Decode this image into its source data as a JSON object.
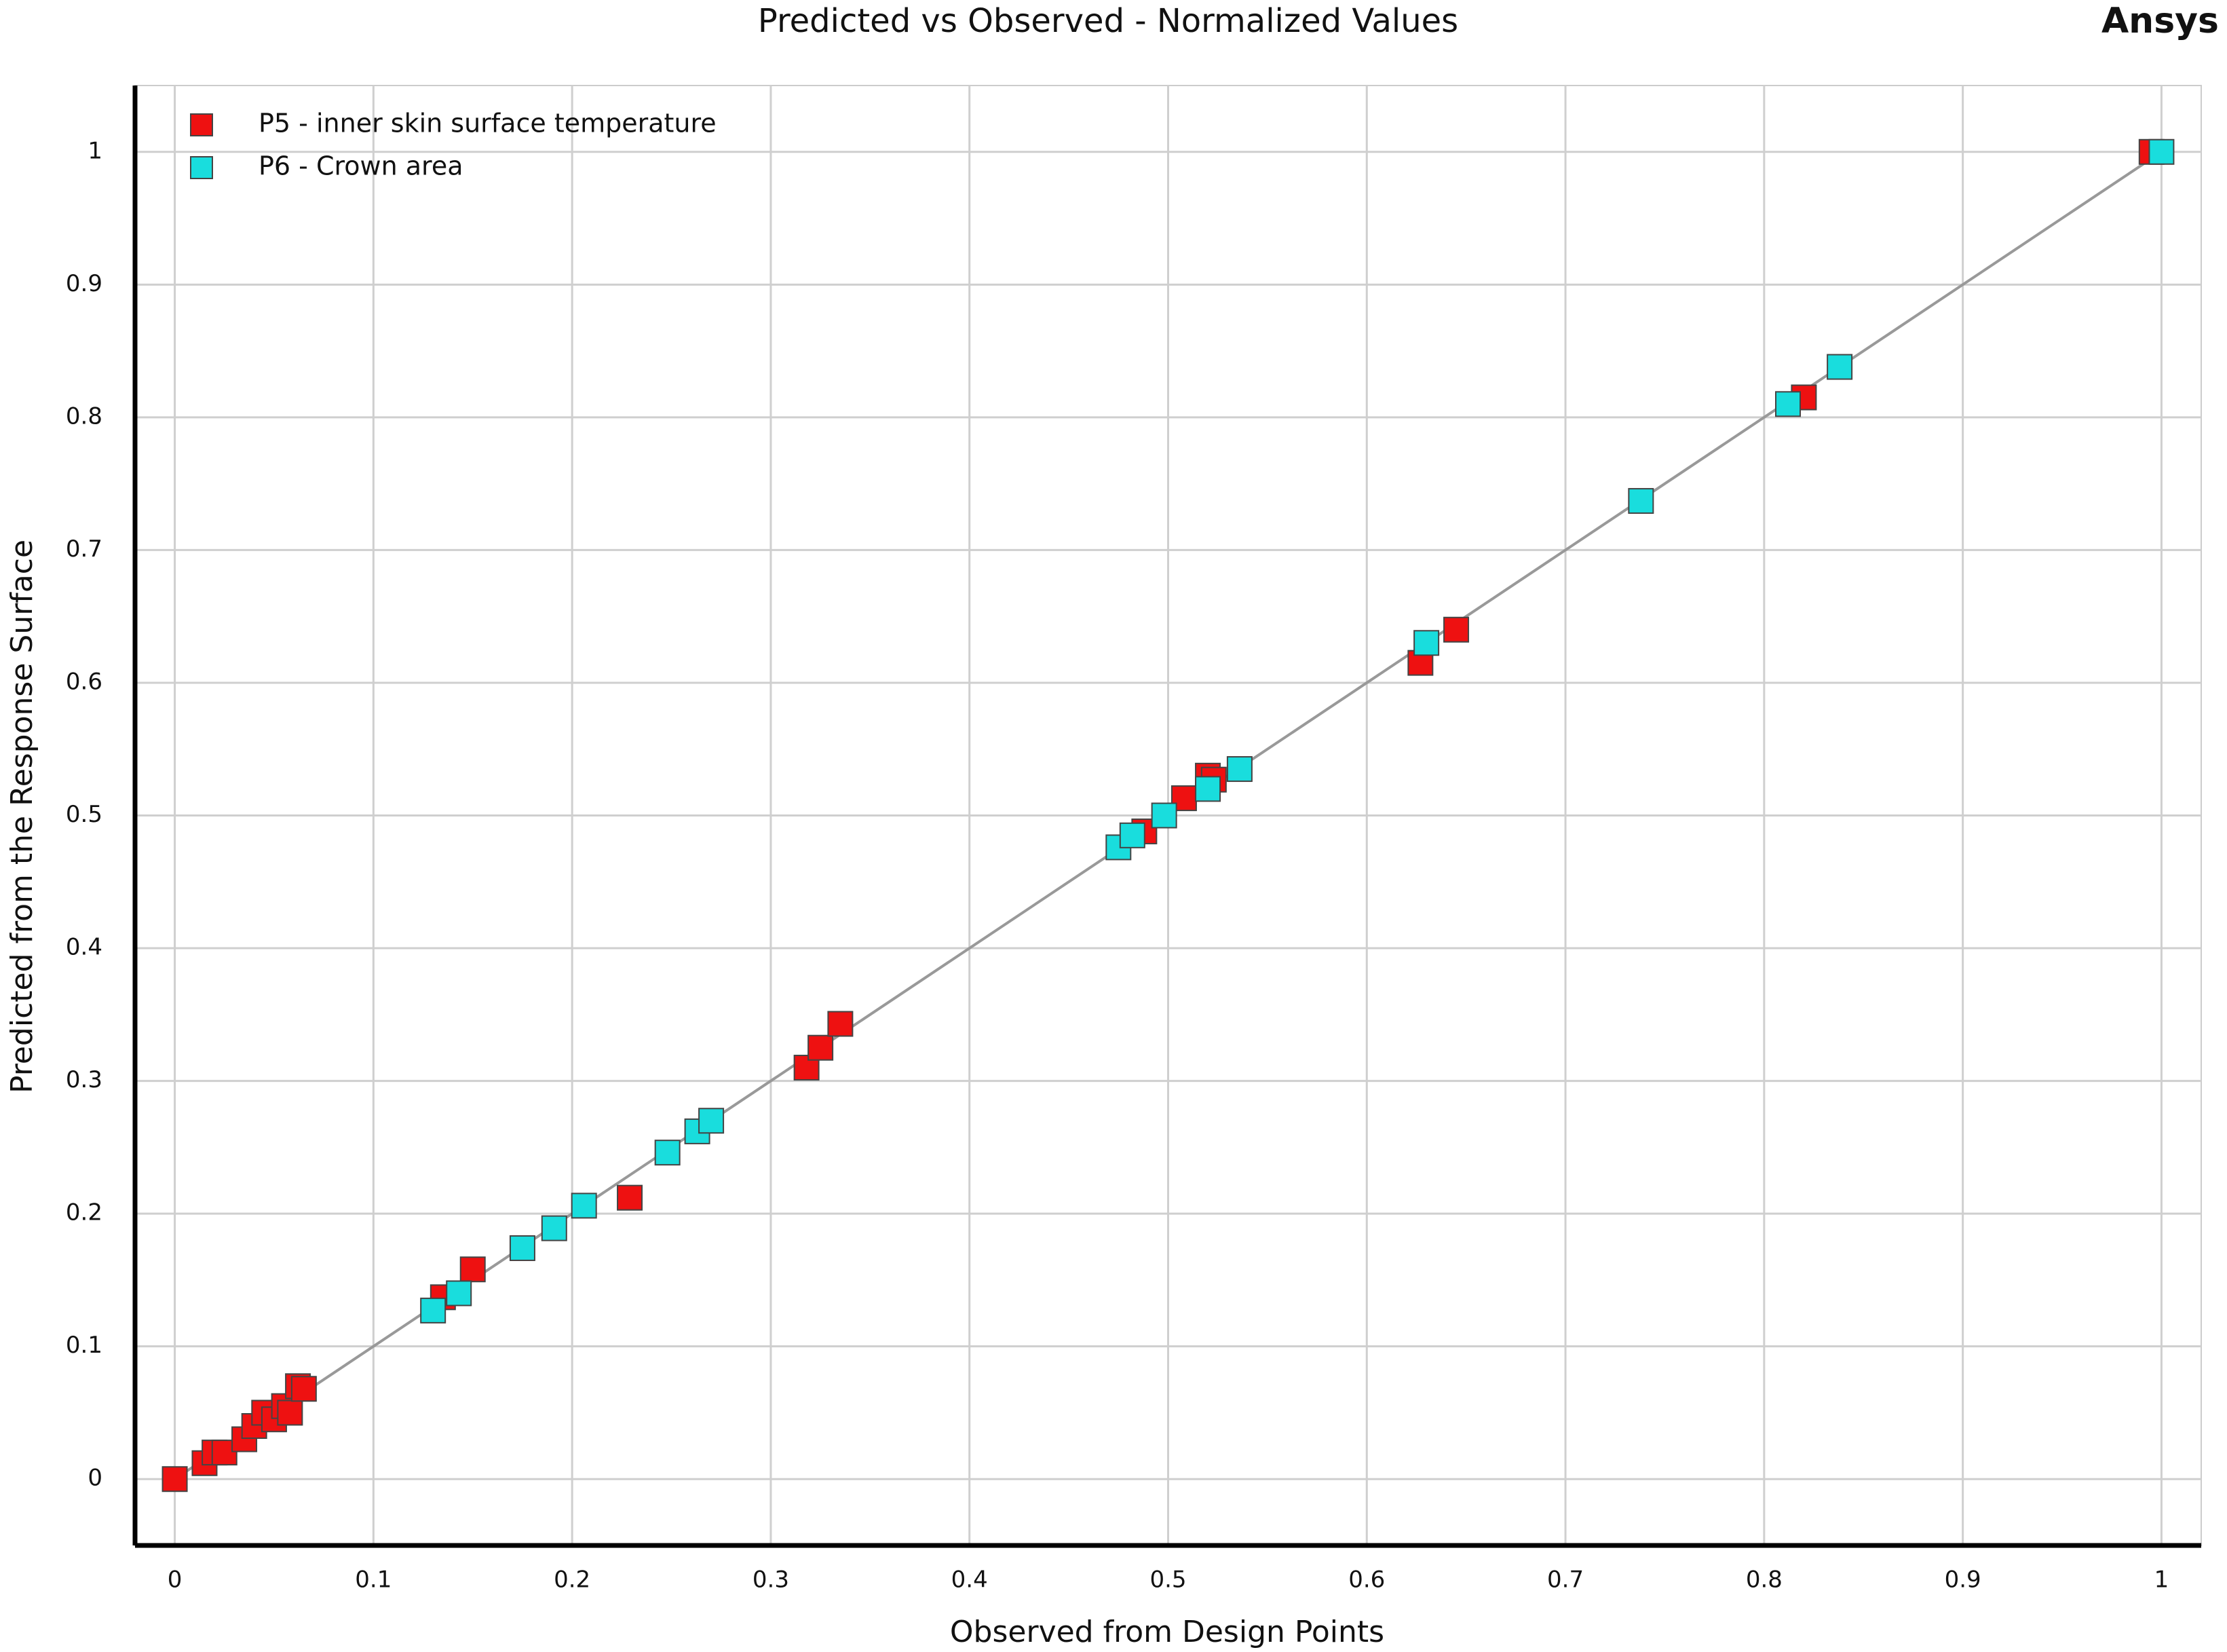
{
  "chart_data": {
    "type": "scatter",
    "title": "Predicted vs Observed - Normalized Values",
    "logo": "Ansys",
    "x_label": "Observed from Design Points",
    "y_label": "Predicted from the Response Surface",
    "xlim": [
      -0.02,
      1.02
    ],
    "ylim": [
      -0.05,
      1.05
    ],
    "xticks": [
      0,
      0.1,
      0.2,
      0.3,
      0.4,
      0.5,
      0.6,
      0.7,
      0.8,
      0.9,
      1
    ],
    "yticks": [
      0,
      0.1,
      0.2,
      0.3,
      0.4,
      0.5,
      0.6,
      0.7,
      0.8,
      0.9,
      1
    ],
    "grid": true,
    "legend": "upper left",
    "series": [
      {
        "name": "P5 - inner skin surface temperature",
        "color": "#ee1111",
        "x": [
          0,
          0.015,
          0.02,
          0.025,
          0.035,
          0.04,
          0.045,
          0.05,
          0.055,
          0.058,
          0.062,
          0.065,
          0.135,
          0.15,
          0.229,
          0.318,
          0.325,
          0.335,
          0.488,
          0.508,
          0.52,
          0.523,
          0.627,
          0.645,
          0.82,
          0.995
        ],
        "values": [
          0,
          0.012,
          0.02,
          0.02,
          0.03,
          0.04,
          0.05,
          0.045,
          0.055,
          0.05,
          0.07,
          0.068,
          0.137,
          0.158,
          0.212,
          0.31,
          0.325,
          0.343,
          0.488,
          0.513,
          0.53,
          0.527,
          0.615,
          0.64,
          0.815,
          1.0
        ]
      },
      {
        "name": "P6 - Crown area",
        "color": "#19dddd",
        "x": [
          0.13,
          0.143,
          0.175,
          0.191,
          0.206,
          0.248,
          0.263,
          0.27,
          0.475,
          0.482,
          0.498,
          0.52,
          0.536,
          0.63,
          0.738,
          0.812,
          0.838,
          1.0
        ],
        "values": [
          0.127,
          0.14,
          0.174,
          0.189,
          0.206,
          0.246,
          0.262,
          0.27,
          0.476,
          0.485,
          0.5,
          0.52,
          0.535,
          0.63,
          0.737,
          0.81,
          0.838,
          1.0
        ]
      }
    ]
  }
}
